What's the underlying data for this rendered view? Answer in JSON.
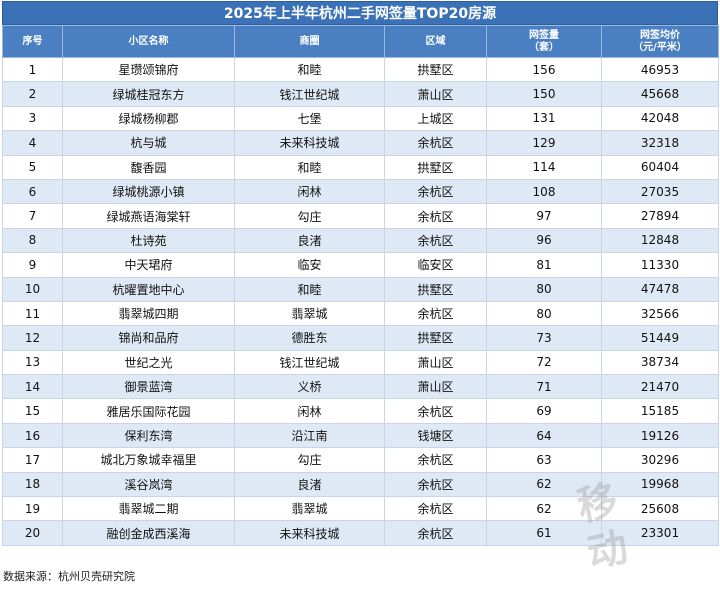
{
  "title": "2025年上半年杭州二手网签量TOP20房源",
  "headers": {
    "rank": "序号",
    "name": "小区名称",
    "area": "商圈",
    "district": "区域",
    "count_l1": "网签量",
    "count_l2": "（套）",
    "price_l1": "网签均价",
    "price_l2": "（元/平米）"
  },
  "rows": [
    {
      "rank": "1",
      "name": "星瓒颂锦府",
      "area": "和睦",
      "district": "拱墅区",
      "count": "156",
      "price": "46953"
    },
    {
      "rank": "2",
      "name": "绿城桂冠东方",
      "area": "钱江世纪城",
      "district": "萧山区",
      "count": "150",
      "price": "45668"
    },
    {
      "rank": "3",
      "name": "绿城杨柳郡",
      "area": "七堡",
      "district": "上城区",
      "count": "131",
      "price": "42048"
    },
    {
      "rank": "4",
      "name": "杭与城",
      "area": "未来科技城",
      "district": "余杭区",
      "count": "129",
      "price": "32318"
    },
    {
      "rank": "5",
      "name": "馥香园",
      "area": "和睦",
      "district": "拱墅区",
      "count": "114",
      "price": "60404"
    },
    {
      "rank": "6",
      "name": "绿城桃源小镇",
      "area": "闲林",
      "district": "余杭区",
      "count": "108",
      "price": "27035"
    },
    {
      "rank": "7",
      "name": "绿城燕语海棠轩",
      "area": "勾庄",
      "district": "余杭区",
      "count": "97",
      "price": "27894"
    },
    {
      "rank": "8",
      "name": "杜诗苑",
      "area": "良渚",
      "district": "余杭区",
      "count": "96",
      "price": "12848"
    },
    {
      "rank": "9",
      "name": "中天珺府",
      "area": "临安",
      "district": "临安区",
      "count": "81",
      "price": "11330"
    },
    {
      "rank": "10",
      "name": "杭曜置地中心",
      "area": "和睦",
      "district": "拱墅区",
      "count": "80",
      "price": "47478"
    },
    {
      "rank": "11",
      "name": "翡翠城四期",
      "area": "翡翠城",
      "district": "余杭区",
      "count": "80",
      "price": "32566"
    },
    {
      "rank": "12",
      "name": "锦尚和品府",
      "area": "德胜东",
      "district": "拱墅区",
      "count": "73",
      "price": "51449"
    },
    {
      "rank": "13",
      "name": "世纪之光",
      "area": "钱江世纪城",
      "district": "萧山区",
      "count": "72",
      "price": "38734"
    },
    {
      "rank": "14",
      "name": "御景蓝湾",
      "area": "义桥",
      "district": "萧山区",
      "count": "71",
      "price": "21470"
    },
    {
      "rank": "15",
      "name": "雅居乐国际花园",
      "area": "闲林",
      "district": "余杭区",
      "count": "69",
      "price": "15185"
    },
    {
      "rank": "16",
      "name": "保利东湾",
      "area": "沿江南",
      "district": "钱塘区",
      "count": "64",
      "price": "19126"
    },
    {
      "rank": "17",
      "name": "城北万象城幸福里",
      "area": "勾庄",
      "district": "余杭区",
      "count": "63",
      "price": "30296"
    },
    {
      "rank": "18",
      "name": "溪谷岚湾",
      "area": "良渚",
      "district": "余杭区",
      "count": "62",
      "price": "19968"
    },
    {
      "rank": "19",
      "name": "翡翠城二期",
      "area": "翡翠城",
      "district": "余杭区",
      "count": "62",
      "price": "25608"
    },
    {
      "rank": "20",
      "name": "融创金成西溪海",
      "area": "未来科技城",
      "district": "余杭区",
      "count": "61",
      "price": "23301"
    }
  ],
  "source": "数据来源：杭州贝壳研究院"
}
